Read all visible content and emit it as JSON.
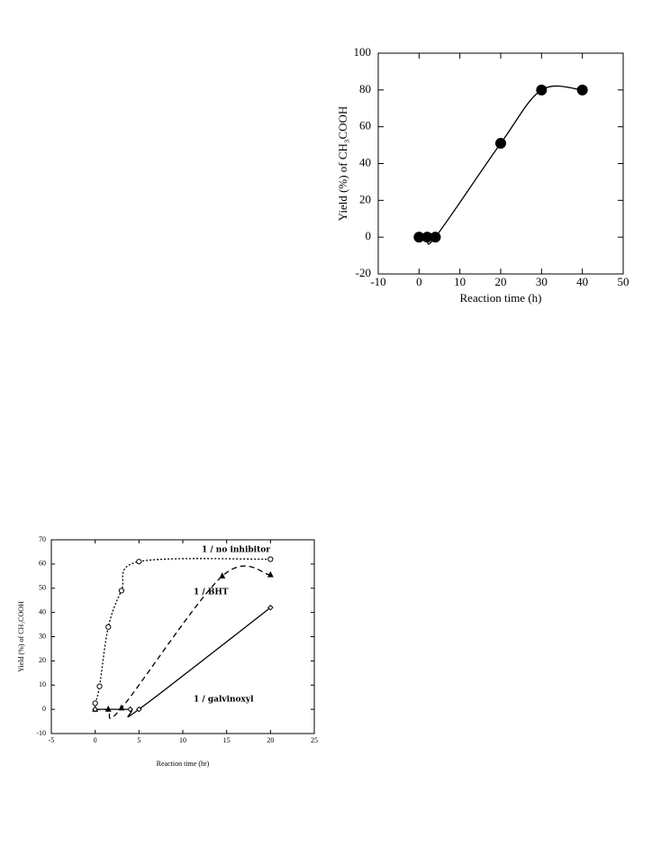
{
  "chart_data": [
    {
      "type": "line",
      "xlabel": "Reaction time (h)",
      "ylabel": "Yield (%) of CH₃COOH",
      "xlim": [
        -10,
        50
      ],
      "xticks": [
        -10,
        0,
        10,
        20,
        30,
        40,
        50
      ],
      "ylim": [
        -20,
        100
      ],
      "yticks": [
        -20,
        0,
        20,
        40,
        60,
        80,
        100
      ],
      "series": [
        {
          "color": "#000000",
          "marker": "filled-circle",
          "dash": "solid",
          "x": [
            0,
            2,
            4,
            20,
            30,
            40
          ],
          "values": [
            0,
            0,
            0,
            51,
            80,
            80
          ]
        }
      ]
    },
    {
      "type": "line",
      "xlabel": "Reaction time (hr)",
      "ylabel": "Yield (%) of CH₃COOH",
      "xlim": [
        -5,
        25
      ],
      "xticks": [
        -5,
        0,
        5,
        10,
        15,
        20,
        25
      ],
      "ylim": [
        -10,
        70
      ],
      "yticks": [
        -10,
        0,
        10,
        20,
        30,
        40,
        50,
        60,
        70
      ],
      "series": [
        {
          "name": "1 / no inhibitor",
          "color": "#000000",
          "marker": "open-circle",
          "dash": "dotted",
          "x": [
            0,
            0.5,
            1.5,
            3,
            5,
            20
          ],
          "values": [
            2.5,
            9.5,
            34,
            49,
            61,
            62
          ]
        },
        {
          "name": "1 / BHT",
          "color": "#000000",
          "marker": "filled-triangle",
          "dash": "dashed",
          "x": [
            0,
            1.5,
            3,
            14.5,
            20
          ],
          "values": [
            0,
            0,
            0.5,
            55,
            55.5
          ]
        },
        {
          "name": "1 / galvinoxyl",
          "color": "#000000",
          "marker": "open-diamond",
          "dash": "solid",
          "x": [
            0,
            4,
            5,
            20
          ],
          "values": [
            0,
            0,
            0,
            42
          ]
        }
      ]
    }
  ]
}
